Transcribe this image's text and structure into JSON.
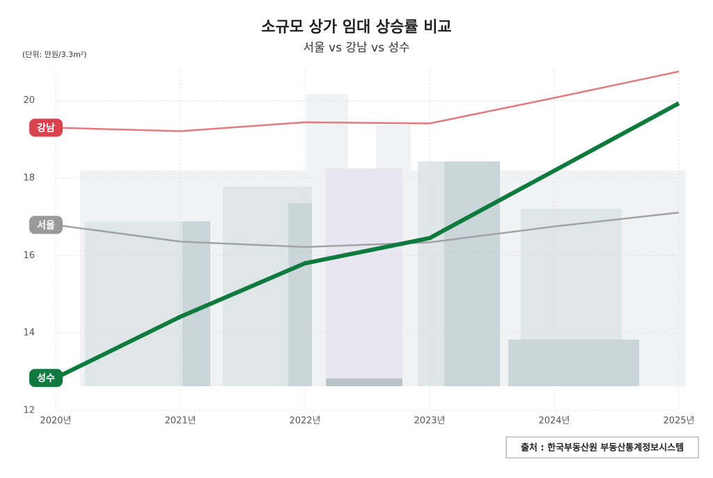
{
  "chart_data": {
    "type": "line",
    "title": "소규모 상가 임대 상승률 비교",
    "subtitle": "서울 vs 강남 vs 성수",
    "unit_label": "(단위: 만원/3.3m²)",
    "source": "출처 : 한국부동산원 부동산통계정보시스템",
    "categories": [
      "2020년",
      "2021년",
      "2022년",
      "2023년",
      "2024년",
      "2025년"
    ],
    "series": [
      {
        "name": "강남",
        "color": "#e07b80",
        "label_color": "#d9434f",
        "values": [
          19.3,
          19.21,
          19.44,
          19.41,
          20.07,
          20.75
        ]
      },
      {
        "name": "서울",
        "color": "#a3a3a3",
        "label_color": "#9a9a9a",
        "values": [
          16.79,
          16.36,
          16.22,
          16.34,
          16.75,
          17.11
        ]
      },
      {
        "name": "성수",
        "color": "#0f7a3e",
        "label_color": "#0f7a3e",
        "values": [
          12.84,
          14.42,
          15.8,
          16.45,
          18.19,
          19.93
        ]
      }
    ],
    "ylim": [
      12,
      20.8
    ],
    "yticks": [
      12,
      14,
      16,
      18,
      20
    ],
    "grid": true
  }
}
